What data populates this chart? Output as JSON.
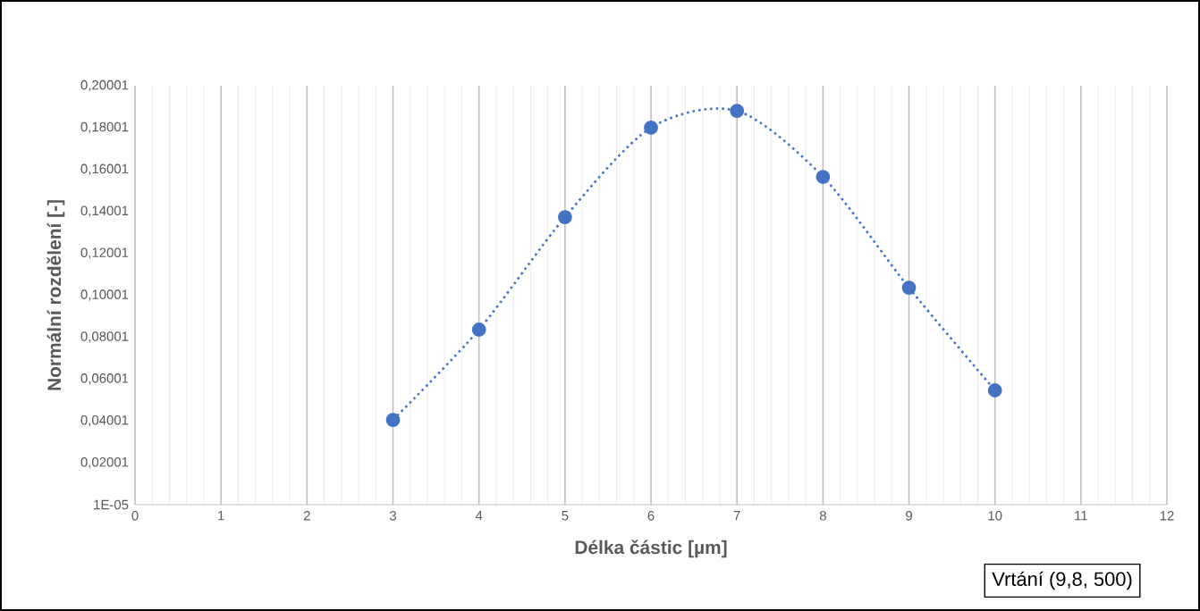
{
  "chart_data": {
    "type": "line",
    "xlabel": "Délka částic [µm]",
    "ylabel": "Normální rozdělení [-]",
    "annotations": [
      "Vrtání  (9,8, 500)"
    ],
    "x": [
      3,
      4,
      5,
      6,
      7,
      8,
      9,
      10
    ],
    "values": [
      0.0405,
      0.0836,
      0.1373,
      0.18,
      0.188,
      0.1565,
      0.1036,
      0.0546
    ],
    "color": "#4472c4",
    "marker": "circle",
    "line_style": "dotted",
    "grid": "x",
    "xlim": [
      0,
      12
    ],
    "xticks": [
      0,
      1,
      2,
      3,
      4,
      5,
      6,
      7,
      8,
      9,
      10,
      11,
      12
    ],
    "ylim": [
      1e-05,
      0.20001
    ],
    "yticks": [
      {
        "value": 1e-05,
        "label": "1E-05"
      },
      {
        "value": 0.02001,
        "label": "0,02001"
      },
      {
        "value": 0.04001,
        "label": "0,04001"
      },
      {
        "value": 0.06001,
        "label": "0,06001"
      },
      {
        "value": 0.08001,
        "label": "0,08001"
      },
      {
        "value": 0.10001,
        "label": "0,10001"
      },
      {
        "value": 0.12001,
        "label": "0,12001"
      },
      {
        "value": 0.14001,
        "label": "0,14001"
      },
      {
        "value": 0.16001,
        "label": "0,16001"
      },
      {
        "value": 0.18001,
        "label": "0,18001"
      },
      {
        "value": 0.20001,
        "label": "0,20001"
      }
    ]
  }
}
